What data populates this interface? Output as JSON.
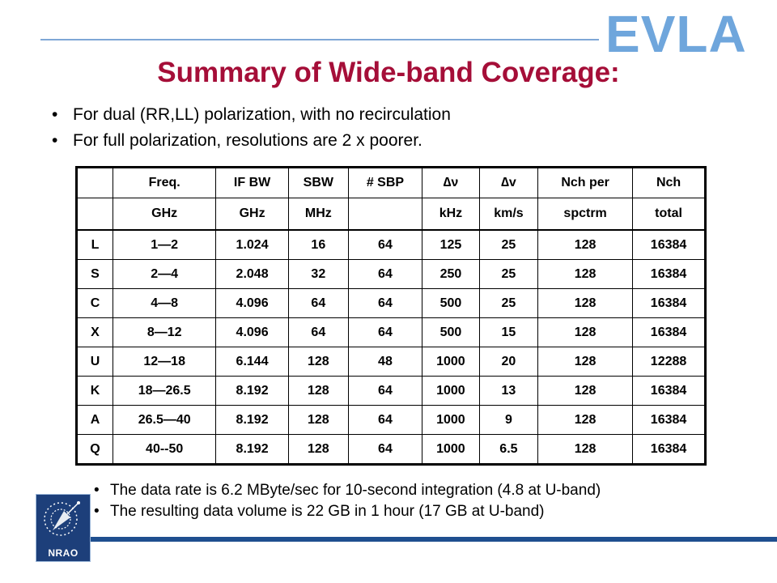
{
  "logo": {
    "evla_text": "EVLA",
    "nrao_text": "NRAO"
  },
  "title": "Summary of Wide-band Coverage:",
  "top_bullets": [
    "For dual (RR,LL) polarization, with no recirculation",
    "For full polarization, resolutions are 2 x poorer."
  ],
  "table": {
    "header_row1": [
      "",
      "Freq.",
      "IF BW",
      "SBW",
      "# SBP",
      "∆ν",
      "∆v",
      "Nch per",
      "Nch"
    ],
    "header_row2": [
      "",
      "GHz",
      "GHz",
      "MHz",
      "",
      "kHz",
      "km/s",
      "spctrm",
      "total"
    ],
    "rows": [
      [
        "L",
        "1—2",
        "1.024",
        "16",
        "64",
        "125",
        "25",
        "128",
        "16384"
      ],
      [
        "S",
        "2—4",
        "2.048",
        "32",
        "64",
        "250",
        "25",
        "128",
        "16384"
      ],
      [
        "C",
        "4—8",
        "4.096",
        "64",
        "64",
        "500",
        "25",
        "128",
        "16384"
      ],
      [
        "X",
        "8—12",
        "4.096",
        "64",
        "64",
        "500",
        "15",
        "128",
        "16384"
      ],
      [
        "U",
        "12—18",
        "6.144",
        "128",
        "48",
        "1000",
        "20",
        "128",
        "12288"
      ],
      [
        "K",
        "18—26.5",
        "8.192",
        "128",
        "64",
        "1000",
        "13",
        "128",
        "16384"
      ],
      [
        "A",
        "26.5—40",
        "8.192",
        "128",
        "64",
        "1000",
        "9",
        "128",
        "16384"
      ],
      [
        "Q",
        "40--50",
        "8.192",
        "128",
        "64",
        "1000",
        "6.5",
        "128",
        "16384"
      ]
    ]
  },
  "bottom_bullets": [
    "The data rate is 6.2 MByte/sec for 10-second integration (4.8 at U-band)",
    "The resulting data volume is 22 GB in 1 hour  (17 GB at U-band)"
  ],
  "colors": {
    "title": "#a50e38",
    "evla": "#6fa6dc",
    "band": "#1f4f8f",
    "rule": "#7ea7d6"
  }
}
